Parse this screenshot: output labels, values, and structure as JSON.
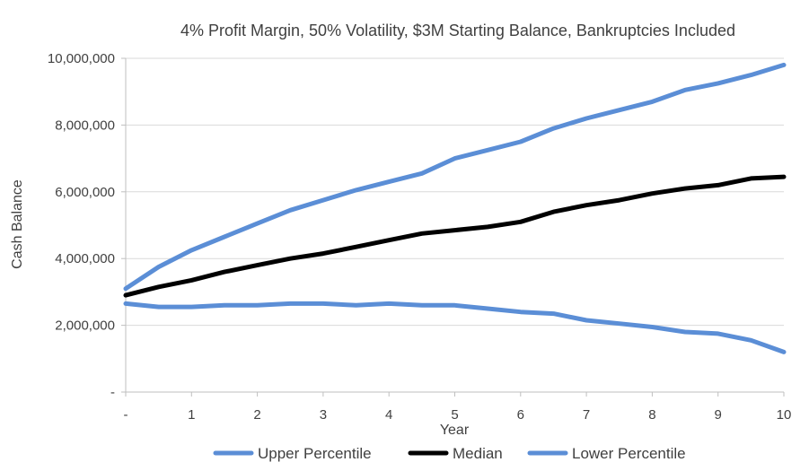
{
  "chart_data": {
    "type": "line",
    "title": "4% Profit Margin, 50% Volatility, $3M Starting Balance, Bankruptcies Included",
    "xlabel": "Year",
    "ylabel": "Cash Balance",
    "xlim": [
      0,
      10
    ],
    "ylim": [
      0,
      10000000
    ],
    "x_ticks": [
      {
        "value": 0,
        "label": "-"
      },
      {
        "value": 1,
        "label": "1"
      },
      {
        "value": 2,
        "label": "2"
      },
      {
        "value": 3,
        "label": "3"
      },
      {
        "value": 4,
        "label": "4"
      },
      {
        "value": 5,
        "label": "5"
      },
      {
        "value": 6,
        "label": "6"
      },
      {
        "value": 7,
        "label": "7"
      },
      {
        "value": 8,
        "label": "8"
      },
      {
        "value": 9,
        "label": "9"
      },
      {
        "value": 10,
        "label": "10"
      }
    ],
    "y_ticks": [
      {
        "value": 0,
        "label": "-"
      },
      {
        "value": 2000000,
        "label": "2,000,000"
      },
      {
        "value": 4000000,
        "label": "4,000,000"
      },
      {
        "value": 6000000,
        "label": "6,000,000"
      },
      {
        "value": 8000000,
        "label": "8,000,000"
      },
      {
        "value": 10000000,
        "label": "10,000,000"
      }
    ],
    "grid": true,
    "legend_position": "bottom",
    "x": [
      0,
      0.5,
      1,
      1.5,
      2,
      2.5,
      3,
      3.5,
      4,
      4.5,
      5,
      5.5,
      6,
      6.5,
      7,
      7.5,
      8,
      8.5,
      9,
      9.5,
      10
    ],
    "series": [
      {
        "name": "Upper Percentile",
        "color": "#5B8ED6",
        "values": [
          3100000,
          3750000,
          4250000,
          4650000,
          5050000,
          5450000,
          5750000,
          6050000,
          6300000,
          6550000,
          7000000,
          7250000,
          7500000,
          7900000,
          8200000,
          8450000,
          8700000,
          9050000,
          9250000,
          9500000,
          9800000
        ]
      },
      {
        "name": "Median",
        "color": "#000000",
        "values": [
          2900000,
          3150000,
          3350000,
          3600000,
          3800000,
          4000000,
          4150000,
          4350000,
          4550000,
          4750000,
          4850000,
          4950000,
          5100000,
          5400000,
          5600000,
          5750000,
          5950000,
          6100000,
          6200000,
          6400000,
          6450000
        ]
      },
      {
        "name": "Lower Percentile",
        "color": "#5B8ED6",
        "values": [
          2650000,
          2550000,
          2550000,
          2600000,
          2600000,
          2650000,
          2650000,
          2600000,
          2650000,
          2600000,
          2600000,
          2500000,
          2400000,
          2350000,
          2150000,
          2050000,
          1950000,
          1800000,
          1750000,
          1550000,
          1200000
        ]
      }
    ]
  }
}
